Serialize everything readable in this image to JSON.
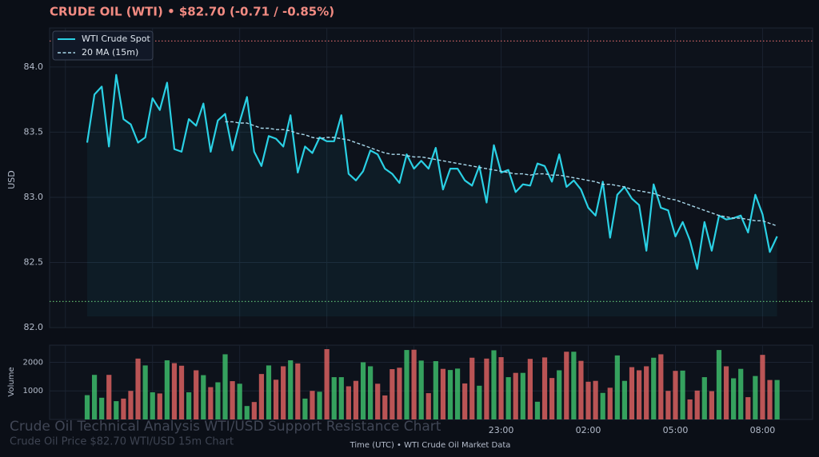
{
  "chart_data": [
    {
      "type": "line",
      "title": "CRUDE OIL (WTI)  •  $82.70  (-0.71 / -0.85%)",
      "ylabel": "USD",
      "ylim": [
        82.0,
        84.3
      ],
      "yticks": [
        {
          "value": 82,
          "label": "82.0"
        },
        82.5,
        {
          "value": 83,
          "label": "83.0"
        },
        83.5,
        {
          "value": 84,
          "label": "84.0"
        }
      ],
      "resistance": 84.2,
      "resistance_color": "#e06c6c",
      "support": 82.2,
      "support_color": "#5fb36a",
      "grid": true,
      "legend": "upper left",
      "series": [
        {
          "name": "WTI Crude Spot",
          "color": "#2ad0e4",
          "values": [
            83.42,
            83.79,
            83.85,
            83.39,
            83.94,
            83.6,
            83.56,
            83.42,
            83.46,
            83.76,
            83.67,
            83.88,
            83.37,
            83.35,
            83.6,
            83.55,
            83.72,
            83.35,
            83.59,
            83.64,
            83.36,
            83.58,
            83.77,
            83.35,
            83.24,
            83.47,
            83.45,
            83.39,
            83.63,
            83.19,
            83.39,
            83.34,
            83.46,
            83.43,
            83.43,
            83.63,
            83.18,
            83.13,
            83.2,
            83.36,
            83.33,
            83.22,
            83.18,
            83.11,
            83.33,
            83.22,
            83.28,
            83.22,
            83.38,
            83.06,
            83.22,
            83.22,
            83.13,
            83.09,
            83.24,
            82.96,
            83.4,
            83.19,
            83.21,
            83.04,
            83.1,
            83.09,
            83.26,
            83.24,
            83.12,
            83.33,
            83.08,
            83.13,
            83.06,
            82.92,
            82.86,
            83.12,
            82.69,
            83.02,
            83.08,
            82.99,
            82.94,
            82.59,
            83.1,
            82.92,
            82.9,
            82.7,
            82.81,
            82.67,
            82.45,
            82.81,
            82.59,
            82.86,
            82.83,
            82.84,
            82.86,
            82.73,
            83.02,
            82.87,
            82.58,
            82.7
          ]
        },
        {
          "name": "20 MA (15m)",
          "color": "#a9d9ec",
          "dashed": true,
          "values": [
            null,
            null,
            null,
            null,
            null,
            null,
            null,
            null,
            null,
            null,
            null,
            null,
            null,
            null,
            null,
            null,
            null,
            null,
            null,
            83.58,
            83.58,
            83.57,
            83.57,
            83.55,
            83.53,
            83.53,
            83.52,
            83.52,
            83.51,
            83.49,
            83.48,
            83.46,
            83.45,
            83.46,
            83.46,
            83.45,
            83.44,
            83.42,
            83.4,
            83.38,
            83.36,
            83.34,
            83.33,
            83.33,
            83.32,
            83.31,
            83.31,
            83.3,
            83.29,
            83.28,
            83.27,
            83.26,
            83.25,
            83.24,
            83.23,
            83.22,
            83.21,
            83.2,
            83.19,
            83.18,
            83.18,
            83.17,
            83.18,
            83.18,
            83.17,
            83.17,
            83.16,
            83.15,
            83.14,
            83.13,
            83.12,
            83.1,
            83.1,
            83.09,
            83.08,
            83.06,
            83.05,
            83.04,
            83.03,
            83.01,
            82.99,
            82.98,
            82.96,
            82.94,
            82.92,
            82.9,
            82.88,
            82.86,
            82.85,
            82.84,
            82.84,
            82.83,
            82.82,
            82.82,
            82.8,
            82.78
          ]
        }
      ]
    },
    {
      "type": "bar",
      "ylabel": "Volume",
      "xlabel": "Time (UTC)  •  WTI Crude Oil Market Data",
      "ylim": [
        0,
        2600
      ],
      "yticks": [
        1000,
        2000
      ],
      "up_color": "#3dbb6a",
      "down_color": "#d9605f",
      "categories": [
        null,
        null,
        null,
        null,
        null,
        null,
        null,
        null,
        null,
        null,
        null,
        null,
        null,
        null,
        null,
        null,
        null,
        null,
        null,
        null,
        null,
        null,
        null,
        null,
        null,
        null,
        null,
        null,
        null,
        null,
        null,
        null,
        null,
        null,
        null,
        null,
        null,
        null,
        null,
        null,
        null,
        null,
        null,
        null,
        null,
        null,
        null,
        null,
        null,
        null,
        null,
        null,
        null,
        null,
        null,
        null,
        null,
        "23:00",
        null,
        null,
        null,
        null,
        null,
        null,
        null,
        null,
        null,
        null,
        null,
        "02:00",
        null,
        null,
        null,
        null,
        null,
        null,
        null,
        null,
        null,
        null,
        null,
        "05:00",
        null,
        null,
        null,
        null,
        null,
        null,
        null,
        null,
        null,
        null,
        null,
        "08:00",
        null,
        null
      ],
      "values": [
        850,
        1560,
        760,
        1560,
        640,
        730,
        1000,
        2130,
        1890,
        950,
        910,
        2070,
        1970,
        1880,
        950,
        1720,
        1550,
        1130,
        1300,
        2280,
        1340,
        1250,
        470,
        610,
        1590,
        1890,
        1390,
        1860,
        2070,
        1960,
        730,
        1000,
        970,
        2460,
        1480,
        1480,
        1160,
        1350,
        2000,
        1860,
        1250,
        840,
        1760,
        1810,
        2430,
        2440,
        2060,
        920,
        2040,
        1770,
        1730,
        1780,
        1260,
        2160,
        1180,
        2130,
        2420,
        2180,
        1480,
        1630,
        1630,
        2120,
        620,
        2170,
        1450,
        1720,
        2370,
        2370,
        2050,
        1320,
        1350,
        930,
        1110,
        2240,
        1350,
        1830,
        1720,
        1860,
        2160,
        2280,
        1000,
        1700,
        1710,
        700,
        1010,
        1480,
        990,
        2430,
        1860,
        1440,
        1770,
        780,
        1520,
        2260,
        1380,
        1380
      ]
    }
  ],
  "watermark": {
    "title": "Crude Oil Technical Analysis WTI/USD Support Resistance Chart",
    "subtitle": "Crude Oil Price $82.70 WTI/USD 15m Chart"
  }
}
